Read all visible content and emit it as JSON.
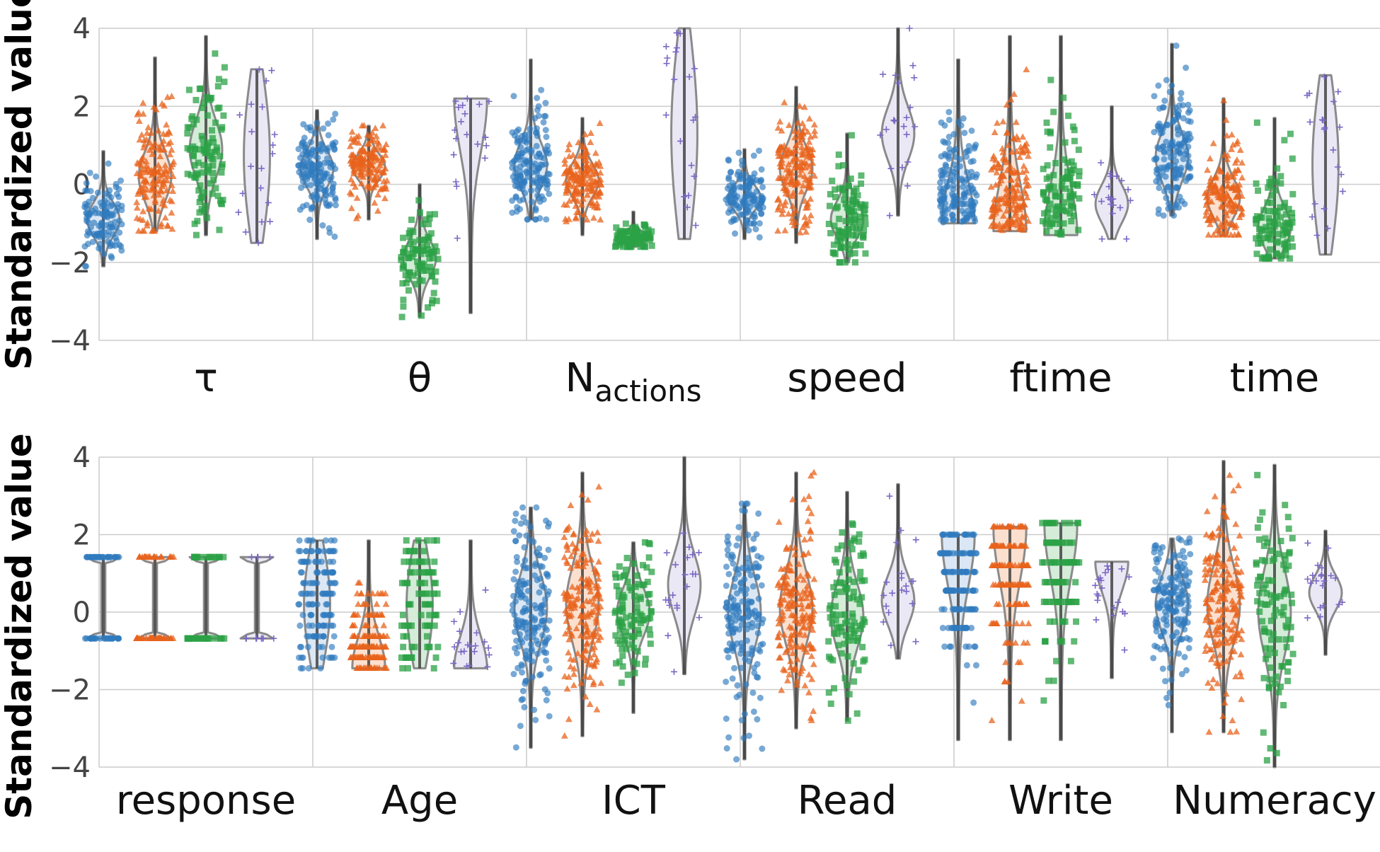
{
  "chart_data": [
    {
      "type": "violin",
      "ylabel": "Standardized value",
      "ylim": [
        -4,
        4
      ],
      "yticks": [
        "4",
        "2",
        "0",
        "−2",
        "−4"
      ],
      "grid": true,
      "panels": [
        {
          "label": "τ",
          "sub": "",
          "groups": [
            {
              "min": -2.1,
              "max": 0.85,
              "median": -0.9,
              "shape": "normal",
              "n": 120
            },
            {
              "min": -1.2,
              "max": 3.25,
              "median": 0.2,
              "shape": "normal",
              "n": 150
            },
            {
              "min": -1.3,
              "max": 3.8,
              "median": 0.9,
              "shape": "normal",
              "n": 100
            },
            {
              "min": -1.5,
              "max": 2.95,
              "median": 0.8,
              "shape": "uniform",
              "n": 20
            }
          ]
        },
        {
          "label": "θ",
          "sub": "",
          "groups": [
            {
              "min": -1.4,
              "max": 1.9,
              "median": 0.4,
              "shape": "normal",
              "n": 150
            },
            {
              "min": -0.9,
              "max": 1.5,
              "median": 0.45,
              "shape": "normal",
              "n": 150
            },
            {
              "min": -3.4,
              "max": 0.0,
              "median": -1.9,
              "shape": "normal",
              "n": 90
            },
            {
              "min": -3.3,
              "max": 2.2,
              "median": 0.4,
              "shape": "topheavy",
              "n": 20
            }
          ]
        },
        {
          "label": "N",
          "sub": "actions",
          "groups": [
            {
              "min": -0.9,
              "max": 3.2,
              "median": 0.5,
              "shape": "normal",
              "n": 150
            },
            {
              "min": -1.3,
              "max": 1.7,
              "median": 0.1,
              "shape": "normal",
              "n": 150
            },
            {
              "min": -1.6,
              "max": -0.7,
              "median": -1.35,
              "shape": "normal",
              "n": 90
            },
            {
              "min": -1.4,
              "max": 4.0,
              "median": 0.2,
              "shape": "uniform",
              "n": 20
            }
          ]
        },
        {
          "label": "speed",
          "sub": "",
          "groups": [
            {
              "min": -1.4,
              "max": 0.9,
              "median": -0.35,
              "shape": "normal",
              "n": 130
            },
            {
              "min": -1.5,
              "max": 2.5,
              "median": 0.4,
              "shape": "normal",
              "n": 170
            },
            {
              "min": -2.0,
              "max": 1.3,
              "median": -0.9,
              "shape": "normal",
              "n": 100
            },
            {
              "min": -0.8,
              "max": 4.0,
              "median": 1.3,
              "shape": "normal",
              "n": 20
            }
          ]
        },
        {
          "label": "ftime",
          "sub": "",
          "groups": [
            {
              "min": -1.0,
              "max": 3.2,
              "median": 0.0,
              "shape": "bottomheavy",
              "n": 150
            },
            {
              "min": -1.2,
              "max": 3.8,
              "median": -0.3,
              "shape": "bottomheavy",
              "n": 170
            },
            {
              "min": -1.3,
              "max": 3.8,
              "median": -0.2,
              "shape": "bottomheavy",
              "n": 100
            },
            {
              "min": -1.4,
              "max": 2.0,
              "median": -0.5,
              "shape": "normal",
              "n": 20
            }
          ]
        },
        {
          "label": "time",
          "sub": "",
          "groups": [
            {
              "min": -0.8,
              "max": 3.6,
              "median": 0.7,
              "shape": "normal",
              "n": 150
            },
            {
              "min": -1.3,
              "max": 2.2,
              "median": -0.35,
              "shape": "normal",
              "n": 150
            },
            {
              "min": -1.9,
              "max": 1.7,
              "median": -1.1,
              "shape": "normal",
              "n": 100
            },
            {
              "min": -1.8,
              "max": 2.8,
              "median": 0.3,
              "shape": "uniform",
              "n": 20
            }
          ]
        }
      ]
    },
    {
      "type": "violin",
      "ylabel": "Standardized value",
      "ylim": [
        -4,
        4
      ],
      "yticks": [
        "4",
        "2",
        "0",
        "−2",
        "−4"
      ],
      "grid": true,
      "panels": [
        {
          "label": "response",
          "sub": "",
          "groups": [
            {
              "min": -0.68,
              "max": 1.42,
              "median": 0.4,
              "shape": "binary",
              "n": 60
            },
            {
              "min": -0.68,
              "max": 1.42,
              "median": 0.4,
              "shape": "binary",
              "n": 60
            },
            {
              "min": -0.68,
              "max": 1.42,
              "median": 0.4,
              "shape": "binary",
              "n": 40
            },
            {
              "min": -0.68,
              "max": 1.42,
              "median": 0.4,
              "shape": "binary",
              "n": 12
            }
          ]
        },
        {
          "label": "Age",
          "sub": "",
          "groups": [
            {
              "min": -1.45,
              "max": 1.85,
              "median": 0.2,
              "shape": "uniform",
              "n": 140,
              "levels": 13
            },
            {
              "min": -1.45,
              "max": 1.85,
              "median": -0.3,
              "shape": "bottomheavy",
              "n": 150,
              "levels": 13
            },
            {
              "min": -1.45,
              "max": 1.85,
              "median": 0.0,
              "shape": "uniform",
              "n": 90,
              "levels": 13
            },
            {
              "min": -1.45,
              "max": 1.85,
              "median": -0.3,
              "shape": "bottomheavy",
              "n": 20
            }
          ]
        },
        {
          "label": "ICT",
          "sub": "",
          "groups": [
            {
              "min": -3.5,
              "max": 2.7,
              "median": 0.1,
              "shape": "normal",
              "n": 170
            },
            {
              "min": -3.2,
              "max": 3.6,
              "median": 0.2,
              "shape": "normal",
              "n": 180
            },
            {
              "min": -2.6,
              "max": 1.8,
              "median": 0.0,
              "shape": "normal",
              "n": 100
            },
            {
              "min": -1.6,
              "max": 4.0,
              "median": 0.7,
              "shape": "normal",
              "n": 20
            }
          ]
        },
        {
          "label": "Read",
          "sub": "",
          "groups": [
            {
              "min": -3.8,
              "max": 2.8,
              "median": 0.0,
              "shape": "normal",
              "n": 170
            },
            {
              "min": -3.0,
              "max": 3.6,
              "median": 0.1,
              "shape": "normal",
              "n": 180
            },
            {
              "min": -2.8,
              "max": 3.1,
              "median": -0.1,
              "shape": "normal",
              "n": 100
            },
            {
              "min": -1.2,
              "max": 3.3,
              "median": 0.3,
              "shape": "normal",
              "n": 20
            }
          ]
        },
        {
          "label": "Write",
          "sub": "",
          "groups": [
            {
              "min": -3.3,
              "max": 2.0,
              "median": 0.2,
              "shape": "topheavy",
              "n": 150,
              "levels": 12
            },
            {
              "min": -3.3,
              "max": 2.2,
              "median": 0.3,
              "shape": "topheavy",
              "n": 170,
              "levels": 12
            },
            {
              "min": -3.3,
              "max": 2.3,
              "median": 0.2,
              "shape": "topheavy",
              "n": 100,
              "levels": 12
            },
            {
              "min": -1.7,
              "max": 1.3,
              "median": 0.2,
              "shape": "topheavy",
              "n": 20
            }
          ]
        },
        {
          "label": "Numeracy",
          "sub": "",
          "groups": [
            {
              "min": -3.1,
              "max": 1.9,
              "median": 0.2,
              "shape": "normal",
              "n": 160
            },
            {
              "min": -3.1,
              "max": 3.9,
              "median": 0.2,
              "shape": "normal",
              "n": 180
            },
            {
              "min": -4.0,
              "max": 3.8,
              "median": 0.0,
              "shape": "normal",
              "n": 100
            },
            {
              "min": -1.1,
              "max": 2.1,
              "median": 0.5,
              "shape": "normal",
              "n": 20
            }
          ]
        }
      ]
    }
  ],
  "groups_style": [
    {
      "color": "#2f7bbf",
      "fill": "#dbe7f4",
      "marker": "circle"
    },
    {
      "color": "#e8631c",
      "fill": "#fbe0cf",
      "marker": "triangle"
    },
    {
      "color": "#2ba146",
      "fill": "#d4ecd8",
      "marker": "square"
    },
    {
      "color": "#7b68c4",
      "fill": "#ebe8f6",
      "marker": "plus"
    }
  ],
  "colors": {
    "grid": "#cccccc",
    "violin_edge": "#8a8a8a",
    "whisker": "#3a3a3a"
  }
}
